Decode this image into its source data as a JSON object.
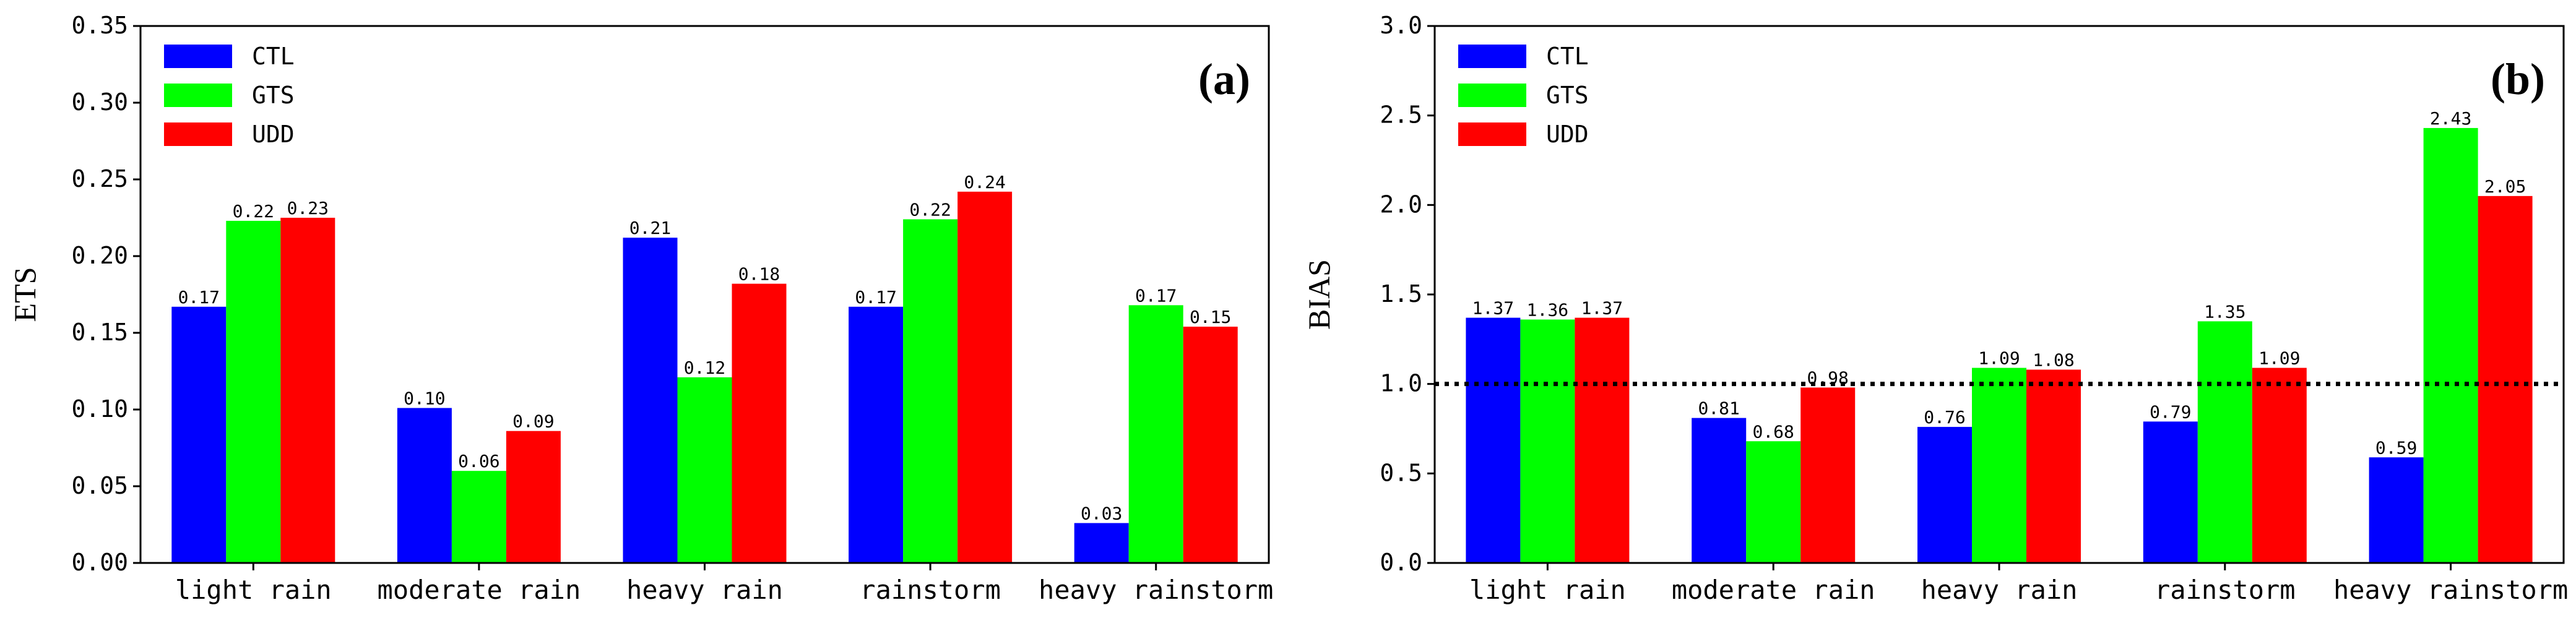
{
  "chart_data": [
    {
      "type": "bar",
      "panel_label": "(a)",
      "ylabel": "ETS",
      "xlabel": "",
      "ylim": [
        0,
        0.35
      ],
      "yticks": [
        "0.00",
        "0.05",
        "0.10",
        "0.15",
        "0.20",
        "0.25",
        "0.30",
        "0.35"
      ],
      "ytick_values": [
        0,
        0.05,
        0.1,
        0.15,
        0.2,
        0.25,
        0.3,
        0.35
      ],
      "categories": [
        "light rain",
        "moderate rain",
        "heavy rain",
        "rainstorm",
        "heavy rainstorm"
      ],
      "series": [
        {
          "name": "CTL",
          "color": "#0000ff",
          "values": [
            0.167,
            0.101,
            0.212,
            0.167,
            0.026
          ],
          "labels": [
            "0.17",
            "0.10",
            "0.21",
            "0.17",
            "0.03"
          ]
        },
        {
          "name": "GTS",
          "color": "#00ff00",
          "values": [
            0.223,
            0.06,
            0.121,
            0.224,
            0.168
          ],
          "labels": [
            "0.22",
            "0.06",
            "0.12",
            "0.22",
            "0.17"
          ]
        },
        {
          "name": "UDD",
          "color": "#ff0000",
          "values": [
            0.225,
            0.086,
            0.182,
            0.242,
            0.154
          ],
          "labels": [
            "0.23",
            "0.09",
            "0.18",
            "0.24",
            "0.15"
          ]
        }
      ],
      "legend_position": "top-left"
    },
    {
      "type": "bar",
      "panel_label": "(b)",
      "ylabel": "BIAS",
      "xlabel": "",
      "ylim": [
        0,
        3.0
      ],
      "yticks": [
        "0.0",
        "0.5",
        "1.0",
        "1.5",
        "2.0",
        "2.5",
        "3.0"
      ],
      "ytick_values": [
        0,
        0.5,
        1.0,
        1.5,
        2.0,
        2.5,
        3.0
      ],
      "reference_line": 1.0,
      "categories": [
        "light rain",
        "moderate rain",
        "heavy rain",
        "rainstorm",
        "heavy rainstorm"
      ],
      "series": [
        {
          "name": "CTL",
          "color": "#0000ff",
          "values": [
            1.37,
            0.81,
            0.76,
            0.79,
            0.59
          ],
          "labels": [
            "1.37",
            "0.81",
            "0.76",
            "0.79",
            "0.59"
          ]
        },
        {
          "name": "GTS",
          "color": "#00ff00",
          "values": [
            1.36,
            0.68,
            1.09,
            1.35,
            2.43
          ],
          "labels": [
            "1.36",
            "0.68",
            "1.09",
            "1.35",
            "2.43"
          ]
        },
        {
          "name": "UDD",
          "color": "#ff0000",
          "values": [
            1.37,
            0.98,
            1.08,
            1.09,
            2.05
          ],
          "labels": [
            "1.37",
            "0.98",
            "1.08",
            "1.09",
            "2.05"
          ]
        }
      ],
      "legend_position": "top-left"
    }
  ]
}
